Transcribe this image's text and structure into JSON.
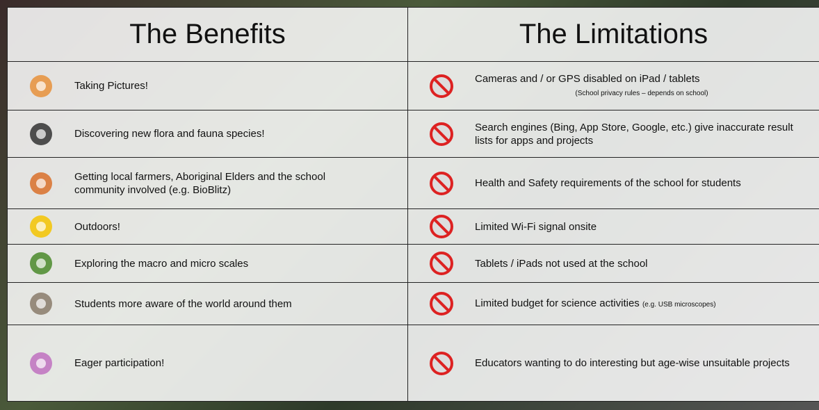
{
  "table": {
    "headers": [
      "The Benefits",
      "The Limitations"
    ],
    "benefits": [
      "Taking Pictures!",
      "Discovering new flora and fauna species!",
      "Getting local farmers, Aboriginal Elders and the school  community involved (e.g. BioBlitz)",
      "Outdoors!",
      "Exploring the macro and micro scales",
      "Students more aware of the world around them",
      "Eager participation!"
    ],
    "limitations": [
      {
        "text": "Cameras  and / or GPS disabled on iPad / tablets",
        "note": "(School privacy rules – depends on school)"
      },
      {
        "text": "Search engines (Bing, App Store, Google, etc.) give inaccurate result lists for apps and projects"
      },
      {
        "text": "Health and Safety requirements of the school for students"
      },
      {
        "text": "Limited Wi-Fi signal onsite"
      },
      {
        "text": "Tablets / iPads not used at the school"
      },
      {
        "text": "Limited budget for science activities",
        "note": "(e.g. USB microscopes)"
      },
      {
        "text": "Educators wanting to do interesting but age-wise unsuitable projects"
      }
    ]
  }
}
